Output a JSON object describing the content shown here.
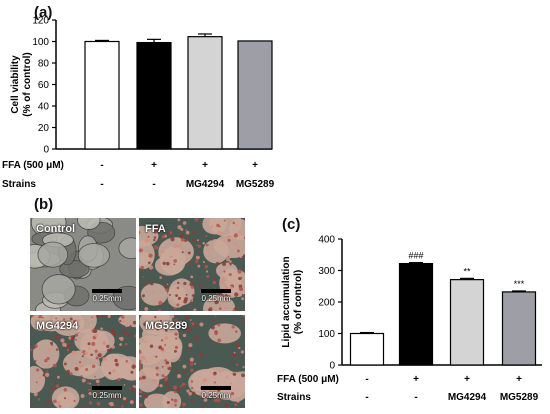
{
  "panels": {
    "a": "(a)",
    "b": "(b)",
    "c": "(c)"
  },
  "treatment_row_labels": {
    "ffa": "FFA (500 μM)",
    "strains": "Strains"
  },
  "micrographs": [
    {
      "caption": "Control",
      "scale": "0.25mm",
      "type": "control"
    },
    {
      "caption": "FFA",
      "scale": "0.25mm",
      "type": "lipid"
    },
    {
      "caption": "MG4294",
      "scale": "0.25mm",
      "type": "lipid"
    },
    {
      "caption": "MG5289",
      "scale": "0.25mm",
      "type": "lipid"
    }
  ],
  "chart_data": [
    {
      "type": "bar",
      "panel": "(a)",
      "ylabel": [
        "Cell viability",
        "(% of control)"
      ],
      "ylim": [
        0,
        120
      ],
      "yticks": [
        0,
        20,
        40,
        60,
        80,
        100,
        120
      ],
      "categories_ffa": [
        "-",
        "+",
        "+",
        "+"
      ],
      "categories_strains": [
        "-",
        "-",
        "MG4294",
        "MG5289"
      ],
      "values": [
        100,
        99,
        104.5,
        100.5
      ],
      "errors": [
        1,
        3,
        2.5,
        0
      ],
      "colors": [
        "#ffffff",
        "#000000",
        "#d4d4d4",
        "#9e9ea6"
      ],
      "annotations": [
        "",
        "",
        "",
        ""
      ]
    },
    {
      "type": "bar",
      "panel": "(c)",
      "ylabel": [
        "Lipid accumulation",
        "(% of control)"
      ],
      "ylim": [
        0,
        400
      ],
      "yticks": [
        0,
        100,
        200,
        300,
        400
      ],
      "categories_ffa": [
        "-",
        "+",
        "+",
        "+"
      ],
      "categories_strains": [
        "-",
        "-",
        "MG4294",
        "MG5289"
      ],
      "values": [
        100,
        322,
        271,
        232
      ],
      "errors": [
        3,
        3,
        4,
        3
      ],
      "colors": [
        "#ffffff",
        "#000000",
        "#d4d4d4",
        "#9e9ea6"
      ],
      "annotations": [
        "",
        "###",
        "**",
        "***"
      ]
    }
  ]
}
